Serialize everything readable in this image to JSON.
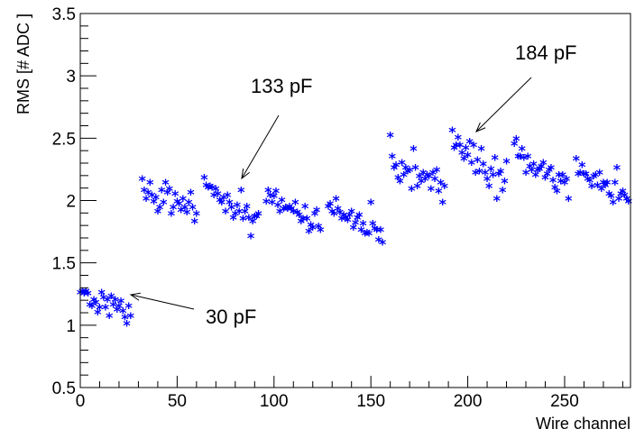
{
  "chart_data": {
    "type": "scatter",
    "xlabel": "Wire channel",
    "ylabel": "RMS [# ADC ]",
    "xlim": [
      0,
      284
    ],
    "ylim": [
      0.5,
      3.5
    ],
    "x_ticks": [
      0,
      50,
      100,
      150,
      200,
      250
    ],
    "y_ticks": [
      0.5,
      1,
      1.5,
      2,
      2.5,
      3,
      3.5
    ],
    "x_tick_labels": [
      "0",
      "50",
      "100",
      "150",
      "200",
      "250"
    ],
    "y_tick_labels": [
      "0.5",
      "1",
      "1.5",
      "2",
      "2.5",
      "3",
      "3.5"
    ],
    "x_minor_step": 10,
    "y_minor_step": 0.1,
    "marker": "*",
    "marker_color": "#0000ff",
    "grid": false,
    "annotations": [
      {
        "text": "30 pF",
        "x": 24,
        "y": 1.25
      },
      {
        "text": "133 pF",
        "x": 83,
        "y": 2.17
      },
      {
        "text": "184 pF",
        "x": 203,
        "y": 2.54
      }
    ],
    "series": [
      {
        "x": [
          0,
          1,
          2,
          3,
          4,
          5,
          6,
          7,
          8,
          9,
          10,
          11,
          12,
          13,
          14,
          15,
          16,
          17,
          18,
          19,
          20,
          21,
          22,
          23,
          24,
          25,
          26,
          32,
          33,
          34,
          35,
          36,
          37,
          38,
          39,
          40,
          41,
          42,
          43,
          44,
          45,
          46,
          47,
          48,
          49,
          50,
          51,
          52,
          53,
          54,
          55,
          56,
          57,
          58,
          59,
          60,
          64,
          65,
          66,
          67,
          68,
          69,
          70,
          71,
          72,
          73,
          74,
          75,
          76,
          77,
          78,
          79,
          80,
          81,
          82,
          83,
          84,
          85,
          86,
          87,
          88,
          89,
          90,
          91,
          92,
          96,
          97,
          98,
          99,
          100,
          101,
          102,
          103,
          104,
          105,
          106,
          107,
          108,
          109,
          110,
          111,
          112,
          113,
          114,
          115,
          116,
          117,
          118,
          119,
          120,
          121,
          122,
          123,
          124,
          128,
          129,
          130,
          131,
          132,
          133,
          134,
          135,
          136,
          137,
          138,
          139,
          140,
          141,
          142,
          143,
          144,
          145,
          146,
          147,
          148,
          149,
          150,
          151,
          152,
          153,
          154,
          155,
          156,
          160,
          161,
          162,
          163,
          164,
          165,
          166,
          167,
          168,
          169,
          170,
          171,
          172,
          173,
          174,
          175,
          176,
          177,
          178,
          179,
          180,
          181,
          182,
          183,
          184,
          185,
          186,
          187,
          188,
          192,
          193,
          194,
          195,
          196,
          197,
          198,
          199,
          200,
          201,
          202,
          203,
          204,
          205,
          206,
          207,
          208,
          209,
          210,
          211,
          212,
          213,
          214,
          215,
          216,
          217,
          218,
          219,
          220,
          224,
          225,
          226,
          227,
          228,
          229,
          230,
          231,
          232,
          233,
          234,
          235,
          236,
          237,
          238,
          239,
          240,
          241,
          242,
          243,
          244,
          245,
          246,
          247,
          248,
          249,
          250,
          251,
          252,
          256,
          257,
          258,
          259,
          260,
          261,
          262,
          263,
          264,
          265,
          266,
          267,
          268,
          269,
          270,
          271,
          272,
          273,
          274,
          275,
          276,
          277,
          278,
          279,
          280,
          281,
          282,
          283
        ],
        "y": [
          1.25,
          1.26,
          1.24,
          1.26,
          1.24,
          1.15,
          1.14,
          1.19,
          1.17,
          1.09,
          1.13,
          1.25,
          1.21,
          1.13,
          1.19,
          1.06,
          1.22,
          1.15,
          1.19,
          1.11,
          1.14,
          1.18,
          1.1,
          1.05,
          1.0,
          1.14,
          1.06,
          2.16,
          2.07,
          2.0,
          2.05,
          2.13,
          2.03,
          1.98,
          2.01,
          1.9,
          1.93,
          2.07,
          1.97,
          2.13,
          2.05,
          2.08,
          1.88,
          1.93,
          2.04,
          1.98,
          1.96,
          1.91,
          2.0,
          1.93,
          1.89,
          1.97,
          2.05,
          1.93,
          1.82,
          1.88,
          2.17,
          2.11,
          2.09,
          2.1,
          2.09,
          2.03,
          2.08,
          2.04,
          1.99,
          1.97,
          2.01,
          1.9,
          2.03,
          1.97,
          1.93,
          1.85,
          1.88,
          1.95,
          1.9,
          2.07,
          1.84,
          1.9,
          1.94,
          1.85,
          1.7,
          1.82,
          1.86,
          1.86,
          1.88,
          1.98,
          2.07,
          2.03,
          1.97,
          2.02,
          2.06,
          1.95,
          1.9,
          1.99,
          1.92,
          1.93,
          1.92,
          1.94,
          1.92,
          1.9,
          1.97,
          1.89,
          1.87,
          1.82,
          1.84,
          1.94,
          1.84,
          1.74,
          1.79,
          1.77,
          1.88,
          1.91,
          1.78,
          1.75,
          1.94,
          1.96,
          1.9,
          1.88,
          2.0,
          1.92,
          1.89,
          1.84,
          1.87,
          1.85,
          1.83,
          1.87,
          1.9,
          1.77,
          1.81,
          1.85,
          1.87,
          1.75,
          1.8,
          1.72,
          1.73,
          1.72,
          1.97,
          1.8,
          1.76,
          1.75,
          1.67,
          1.75,
          1.65,
          2.51,
          2.34,
          2.25,
          2.27,
          2.17,
          2.14,
          2.29,
          2.19,
          2.25,
          2.22,
          2.23,
          2.08,
          2.4,
          2.25,
          2.1,
          2.18,
          2.14,
          2.21,
          2.16,
          2.19,
          2.18,
          2.08,
          2.21,
          2.16,
          2.23,
          2.06,
          2.13,
          1.97,
          2.1,
          2.55,
          2.41,
          2.43,
          2.49,
          2.43,
          2.37,
          2.32,
          2.41,
          2.35,
          2.46,
          2.29,
          2.43,
          2.21,
          2.31,
          2.22,
          2.4,
          2.28,
          2.21,
          2.16,
          2.1,
          2.24,
          2.19,
          2.33,
          2.0,
          2.2,
          2.22,
          2.07,
          2.14,
          2.3,
          2.44,
          2.48,
          2.34,
          2.34,
          2.4,
          2.33,
          2.21,
          2.34,
          2.26,
          2.23,
          2.28,
          2.19,
          2.23,
          2.24,
          2.26,
          2.29,
          2.17,
          2.2,
          2.23,
          2.25,
          2.15,
          2.09,
          2.06,
          2.19,
          2.14,
          2.19,
          2.13,
          2.16,
          2.0,
          2.32,
          2.2,
          2.21,
          2.27,
          2.2,
          2.2,
          2.16,
          2.15,
          2.1,
          2.18,
          2.19,
          2.11,
          2.21,
          2.08,
          2.13,
          2.11,
          2.13,
          2.04,
          2.02,
          1.97,
          2.13,
          2.25,
          2.0,
          2.04,
          2.06,
          2.03,
          2.0,
          1.98
        ]
      }
    ]
  }
}
